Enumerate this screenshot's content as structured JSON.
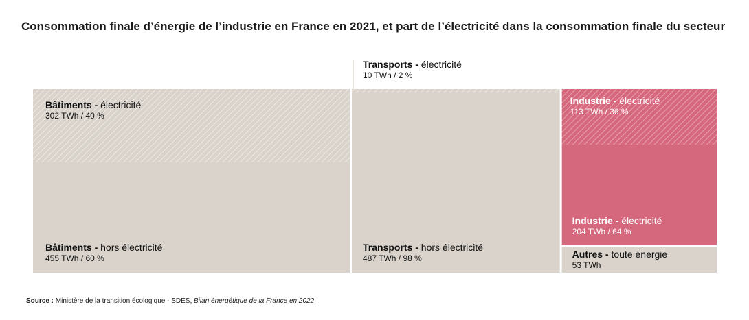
{
  "title": "Consommation finale d’énergie de l’industrie en France en 2021, et part de l’électricité dans la consommation finale du secteur",
  "source": {
    "label": "Source :",
    "text": "Ministère de la transition écologique - SDES, ",
    "italic": "Bilan énergétique de la France en 2022",
    "end": "."
  },
  "colors": {
    "neutral": "#d9d3cc",
    "neutral_hatch": "#ece8e3",
    "accent": "#d6687e",
    "accent_hatch": "#e9a2b1",
    "text_dark": "#111111",
    "text_light": "#ffffff"
  },
  "chart_data": {
    "type": "treemap",
    "unit": "TWh",
    "sectors": [
      {
        "name": "Bâtiments",
        "parts": [
          {
            "name": "Bâtiments",
            "detail": "électricité",
            "value": 302,
            "share": 40,
            "label": "302 TWh / 40 %",
            "hatched": true
          },
          {
            "name": "Bâtiments",
            "detail": "hors électricité",
            "value": 455,
            "share": 60,
            "label": "455 TWh / 60 %",
            "hatched": false
          }
        ]
      },
      {
        "name": "Transports",
        "parts": [
          {
            "name": "Transports",
            "detail": "électricité",
            "value": 10,
            "share": 2,
            "label": "10 TWh / 2 %",
            "hatched": true
          },
          {
            "name": "Transports",
            "detail": "hors électricité",
            "value": 487,
            "share": 98,
            "label": "487 TWh / 98 %",
            "hatched": false
          }
        ]
      },
      {
        "name": "Industrie",
        "parts": [
          {
            "name": "Industrie",
            "detail": "électricité",
            "value": 113,
            "share": 36,
            "label": "113 TWh / 36 %",
            "hatched": true
          },
          {
            "name": "Industrie",
            "detail": "électricité",
            "value": 204,
            "share": 64,
            "label": "204 TWh / 64 %",
            "hatched": false
          }
        ]
      },
      {
        "name": "Autres",
        "parts": [
          {
            "name": "Autres",
            "detail": "toute énergie",
            "value": 53,
            "label": "53 TWh",
            "hatched": false
          }
        ]
      }
    ]
  }
}
